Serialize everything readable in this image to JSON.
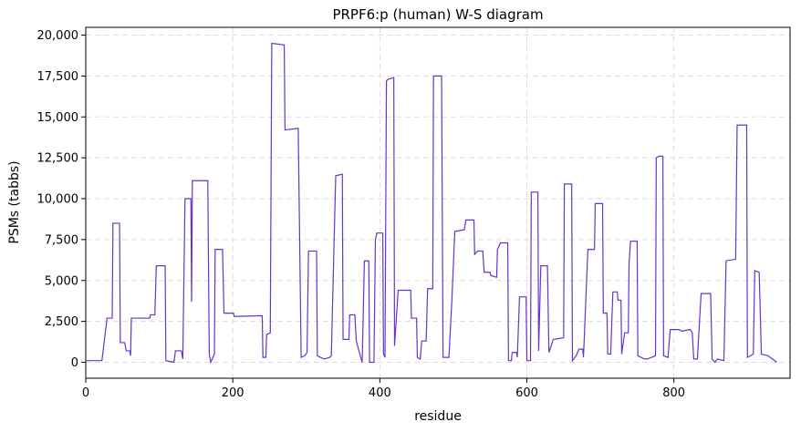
{
  "chart_data": {
    "type": "line",
    "title": "PRPF6:p (human) W-S diagram",
    "x_label": "residue",
    "y_label": "PSMs (tabbs)",
    "x": [
      0,
      22,
      29,
      36,
      37,
      46,
      47,
      53,
      55,
      60,
      61,
      62,
      87,
      88,
      94,
      96,
      108,
      109,
      120,
      122,
      130,
      132,
      135,
      143,
      144,
      145,
      166,
      168,
      170,
      175,
      176,
      186,
      188,
      201,
      202,
      240,
      241,
      245,
      246,
      251,
      253,
      270,
      271,
      289,
      293,
      298,
      301,
      303,
      314,
      315,
      324,
      332,
      334,
      340,
      349,
      350,
      358,
      359,
      366,
      368,
      374,
      376,
      379,
      385,
      386,
      392,
      394,
      396,
      404,
      405,
      407,
      409,
      411,
      419,
      420,
      425,
      442,
      443,
      450,
      451,
      455,
      457,
      463,
      465,
      472,
      473,
      484,
      486,
      494,
      498,
      502,
      515,
      517,
      528,
      529,
      533,
      540,
      542,
      550,
      551,
      559,
      560,
      564,
      574,
      575,
      579,
      580,
      586,
      587,
      590,
      599,
      600,
      605,
      606,
      615,
      616,
      619,
      628,
      630,
      636,
      650,
      651,
      661,
      662,
      667,
      671,
      676,
      677,
      683,
      692,
      693,
      703,
      704,
      709,
      710,
      714,
      717,
      723,
      724,
      728,
      729,
      733,
      738,
      739,
      741,
      750,
      751,
      760,
      764,
      775,
      776,
      780,
      785,
      786,
      792,
      795,
      807,
      811,
      822,
      825,
      827,
      832,
      837,
      850,
      852,
      856,
      859,
      868,
      871,
      884,
      886,
      899,
      900,
      908,
      910,
      916,
      919,
      928,
      934,
      940
    ],
    "series": [
      {
        "name": "PSMs",
        "color": "#6633cc",
        "values": [
          100,
          100,
          2700,
          2700,
          8500,
          8500,
          1200,
          1200,
          700,
          700,
          400,
          2700,
          2700,
          2900,
          2900,
          5900,
          5900,
          100,
          0,
          700,
          700,
          200,
          10000,
          10000,
          3700,
          11100,
          11100,
          500,
          0,
          500,
          6900,
          6900,
          3000,
          3000,
          2800,
          2850,
          300,
          300,
          1700,
          1800,
          19500,
          19400,
          14200,
          14300,
          300,
          400,
          600,
          6800,
          6800,
          400,
          200,
          300,
          400,
          11400,
          11500,
          1400,
          1400,
          2900,
          2900,
          1300,
          300,
          0,
          6200,
          6200,
          0,
          0,
          7500,
          7900,
          7900,
          500,
          300,
          17200,
          17300,
          17400,
          1000,
          4400,
          4400,
          2700,
          2700,
          300,
          200,
          1300,
          1300,
          4500,
          4500,
          17500,
          17500,
          300,
          300,
          3800,
          8000,
          8100,
          8700,
          8700,
          6600,
          6800,
          6800,
          5500,
          5500,
          5300,
          5200,
          6900,
          7300,
          7300,
          100,
          100,
          600,
          600,
          300,
          4000,
          4000,
          100,
          100,
          10400,
          10400,
          700,
          5900,
          5900,
          600,
          1400,
          1500,
          10900,
          10900,
          100,
          400,
          800,
          800,
          300,
          6900,
          6900,
          9700,
          9700,
          3000,
          3000,
          500,
          500,
          4300,
          4300,
          3800,
          3800,
          500,
          1800,
          1800,
          6000,
          7400,
          7400,
          400,
          200,
          200,
          400,
          12500,
          12600,
          12600,
          400,
          300,
          2000,
          2000,
          1900,
          2000,
          1800,
          200,
          200,
          4200,
          4200,
          200,
          0,
          200,
          100,
          6200,
          6300,
          14500,
          14500,
          300,
          500,
          5600,
          5500,
          500,
          400,
          200,
          0
        ]
      }
    ],
    "xlim": [
      0,
      958
    ],
    "ylim": [
      -975,
      20475
    ],
    "xticks": [
      0,
      200,
      400,
      600,
      800
    ],
    "yticks": [
      0,
      {
        "value": 2500,
        "label": "2,500"
      },
      {
        "value": 5000,
        "label": "5,000"
      },
      {
        "value": 7500,
        "label": "7,500"
      },
      {
        "value": 10000,
        "label": "10,000"
      },
      {
        "value": 12500,
        "label": "12,500"
      },
      {
        "value": 15000,
        "label": "15,000"
      },
      {
        "value": 17500,
        "label": "17,500"
      },
      {
        "value": 20000,
        "label": "20,000"
      }
    ],
    "grid": true
  }
}
